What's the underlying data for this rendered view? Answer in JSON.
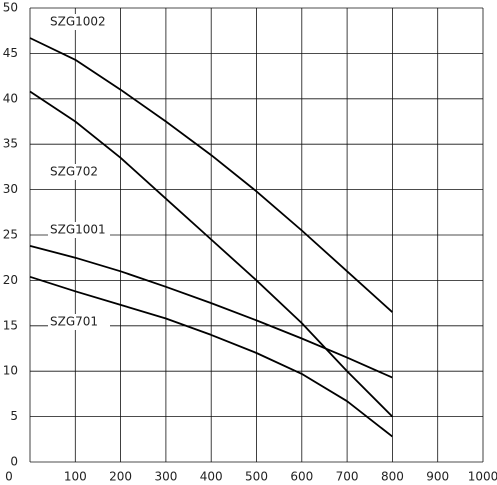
{
  "chart_data": {
    "type": "line",
    "x": [
      0,
      100,
      200,
      300,
      400,
      500,
      600,
      700,
      800
    ],
    "series": [
      {
        "name": "SZG1002",
        "color": "#000000",
        "values": [
          46.7,
          44.3,
          41,
          37.5,
          33.8,
          29.8,
          25.5,
          21,
          16.5
        ]
      },
      {
        "name": "SZG702",
        "color": "#000000",
        "values": [
          40.8,
          37.5,
          33.5,
          29,
          24.5,
          20,
          15.3,
          10,
          5
        ]
      },
      {
        "name": "SZG1001",
        "color": "#000000",
        "values": [
          23.8,
          22.5,
          21,
          19.3,
          17.5,
          15.6,
          13.6,
          11.5,
          9.3
        ]
      },
      {
        "name": "SZG701",
        "color": "#000000",
        "values": [
          20.4,
          18.8,
          17.3,
          15.8,
          14,
          12,
          9.7,
          6.7,
          2.8
        ]
      }
    ],
    "xlim": [
      0,
      1000
    ],
    "xticks": [
      0,
      100,
      200,
      300,
      400,
      500,
      600,
      700,
      800,
      900,
      1000
    ],
    "ylim": [
      0,
      50
    ],
    "yticks": [
      0,
      5,
      10,
      15,
      20,
      25,
      30,
      35,
      40,
      45,
      50
    ],
    "grid": true
  }
}
